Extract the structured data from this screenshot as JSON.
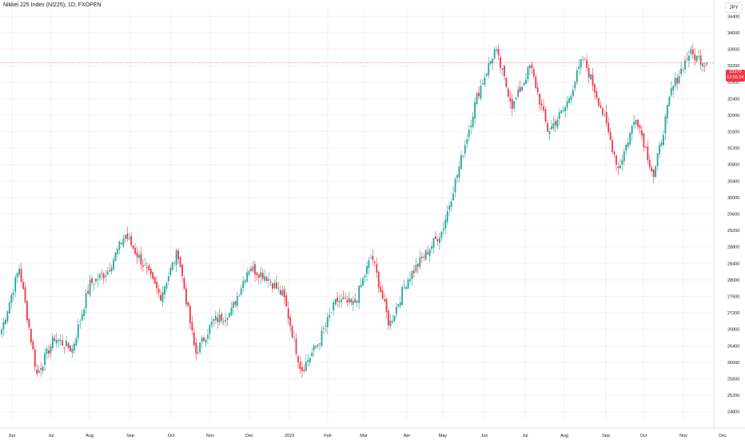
{
  "header": {
    "symbol_title": "Nikkei 225 Index (NI225), 1D, FXOPEN",
    "currency_button": "JPY"
  },
  "price_tag": {
    "last_price": "33270",
    "countdown": "12:55:54"
  },
  "colors": {
    "up": "#26a69a",
    "down": "#f23645",
    "grid": "#f0f3fa",
    "price_line": "#f23645"
  },
  "chart_data": {
    "type": "candlestick",
    "title": "Nikkei 225 Index (NI225), 1D, FXOPEN",
    "currency": "JPY",
    "last_price": 33270,
    "ylim": [
      24600,
      34600
    ],
    "y_ticks": [
      24800,
      25200,
      25600,
      26000,
      26400,
      26800,
      27200,
      27600,
      28000,
      28400,
      28800,
      29200,
      29600,
      30000,
      30400,
      30800,
      31200,
      31600,
      32000,
      32400,
      32800,
      33200,
      33600,
      34000,
      34400
    ],
    "x_ticks": [
      "Jun",
      "Jul",
      "Aug",
      "Sep",
      "Oct",
      "Nov",
      "Dec",
      "2023",
      "Feb",
      "Mar",
      "Apr",
      "May",
      "Jun",
      "Jul",
      "Aug",
      "Sep",
      "Oct",
      "Nov",
      "Dec"
    ],
    "grid": true,
    "close_path": [
      {
        "month": "Jun",
        "close": 26800
      },
      {
        "month": "Jun",
        "close": 28300
      },
      {
        "month": "Jun",
        "close": 25700
      },
      {
        "month": "Jul",
        "close": 26600
      },
      {
        "month": "Jul",
        "close": 26300
      },
      {
        "month": "Jul",
        "close": 27900
      },
      {
        "month": "Aug",
        "close": 28200
      },
      {
        "month": "Aug",
        "close": 29100
      },
      {
        "month": "Sep",
        "close": 28400
      },
      {
        "month": "Sep",
        "close": 27600
      },
      {
        "month": "Sep",
        "close": 28700
      },
      {
        "month": "Oct",
        "close": 26200
      },
      {
        "month": "Oct",
        "close": 27000
      },
      {
        "month": "Nov",
        "close": 27200
      },
      {
        "month": "Nov",
        "close": 28300
      },
      {
        "month": "Dec",
        "close": 28100
      },
      {
        "month": "Dec",
        "close": 27600
      },
      {
        "month": "2023",
        "close": 25800
      },
      {
        "month": "2023",
        "close": 26500
      },
      {
        "month": "Feb",
        "close": 27500
      },
      {
        "month": "Feb",
        "close": 27400
      },
      {
        "month": "Mar",
        "close": 28600
      },
      {
        "month": "Mar",
        "close": 26900
      },
      {
        "month": "Apr",
        "close": 28000
      },
      {
        "month": "Apr",
        "close": 28600
      },
      {
        "month": "May",
        "close": 29200
      },
      {
        "month": "May",
        "close": 30800
      },
      {
        "month": "Jun",
        "close": 32500
      },
      {
        "month": "Jun",
        "close": 33600
      },
      {
        "month": "Jul",
        "close": 32200
      },
      {
        "month": "Jul",
        "close": 33200
      },
      {
        "month": "Aug",
        "close": 31600
      },
      {
        "month": "Aug",
        "close": 32200
      },
      {
        "month": "Sep",
        "close": 33400
      },
      {
        "month": "Sep",
        "close": 32200
      },
      {
        "month": "Oct",
        "close": 30700
      },
      {
        "month": "Oct",
        "close": 32000
      },
      {
        "month": "Nov",
        "close": 30500
      },
      {
        "month": "Nov",
        "close": 32600
      },
      {
        "month": "Nov",
        "close": 33500
      },
      {
        "month": "Nov",
        "close": 33270
      }
    ]
  }
}
